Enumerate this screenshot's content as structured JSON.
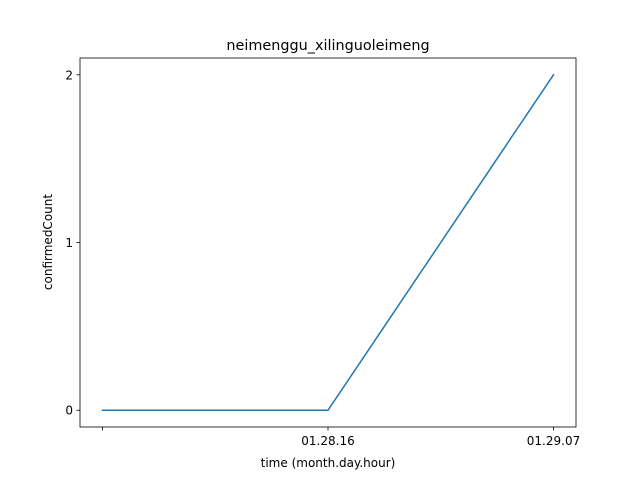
{
  "chart_data": {
    "type": "line",
    "title": "neimenggu_xilinguoleimeng",
    "xlabel": "time (month.day.hour)",
    "ylabel": "confirmedCount",
    "x": [
      "",
      "01.28.16",
      "01.29.07"
    ],
    "series": [
      {
        "values": [
          0,
          0,
          2
        ],
        "color": "#1f77b4"
      }
    ],
    "yticks": [
      0,
      1,
      2
    ],
    "ylim": [
      -0.1,
      2.1
    ],
    "grid": false,
    "legend": "none"
  }
}
